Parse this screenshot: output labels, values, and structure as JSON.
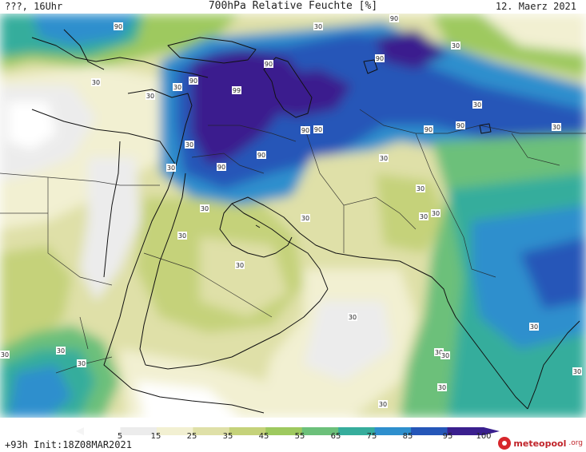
{
  "header": {
    "left": "???, 16Uhr",
    "title": "700hPa Relative Feuchte [%]",
    "date": "12. Maerz 2021"
  },
  "footer": {
    "run": "+93h Init:18Z08MAR2021",
    "brand": "meteopool",
    "brand_tld": ".org"
  },
  "legend": {
    "ticks": [
      "5",
      "15",
      "25",
      "35",
      "45",
      "55",
      "65",
      "75",
      "85",
      "95",
      "100"
    ],
    "colors": [
      "#ffffff",
      "#ececec",
      "#f2f0d2",
      "#dfe0a8",
      "#c5d27a",
      "#9ec95f",
      "#6cc07a",
      "#36ad9c",
      "#2e8fcd",
      "#2556b8",
      "#3a1f8e"
    ]
  },
  "contour_labels": [
    "90",
    "30",
    "90",
    "30",
    "90",
    "90",
    "90",
    "90",
    "30",
    "30",
    "30",
    "99",
    "90",
    "90",
    "30",
    "30",
    "90",
    "90",
    "90",
    "30",
    "30",
    "30",
    "30",
    "30",
    "30",
    "30",
    "30",
    "30",
    "30",
    "30",
    "30",
    "30",
    "30",
    "30",
    "30",
    "30",
    "30",
    "30",
    "30"
  ]
}
